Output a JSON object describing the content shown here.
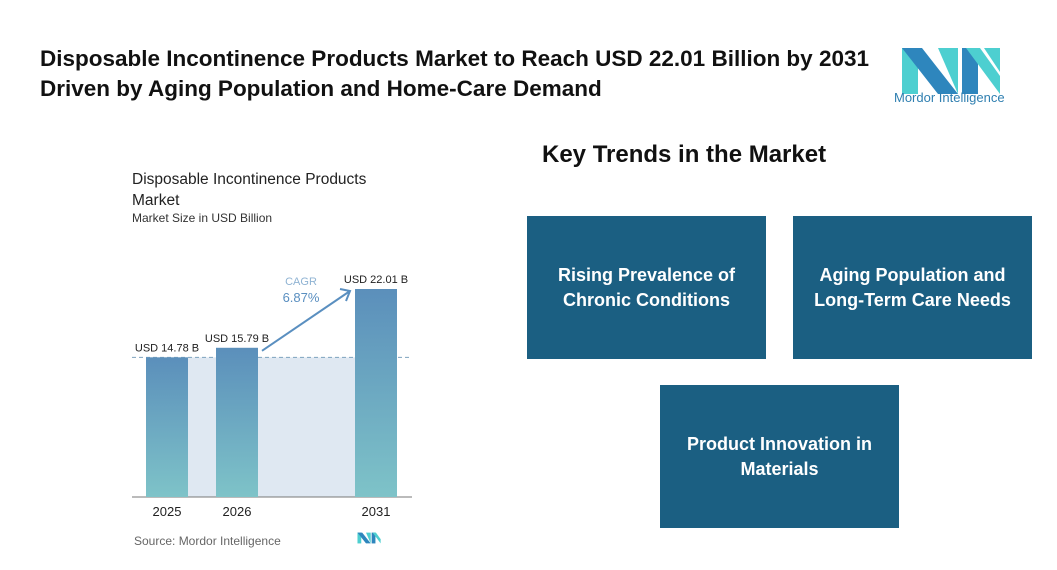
{
  "title": "Disposable Incontinence Products Market to Reach USD 22.01 Billion by 2031 Driven by Aging Population and Home-Care Demand",
  "logo": {
    "text": "Mordor Intelligence",
    "colors": {
      "dark": "#2e86bd",
      "teal": "#4dcfd0"
    }
  },
  "chart_data": {
    "type": "bar",
    "title": "Disposable Incontinence Products Market",
    "subtitle": "Market Size in USD Billion",
    "categories": [
      "2025",
      "2026",
      "2031"
    ],
    "values": [
      14.78,
      15.79,
      22.01
    ],
    "data_labels": [
      "USD 14.78 B",
      "USD 15.79 B",
      "USD 22.01 B"
    ],
    "annotation": {
      "label": "CAGR",
      "value": "6.87%"
    },
    "ylim": [
      0,
      22.01
    ],
    "grid": false,
    "colors": {
      "bar_top": "#5b8fbb",
      "bar_bottom": "#7ec3c8",
      "shade": "#dfe8f2",
      "annotation": "#5a8fc0"
    },
    "source": "Source: Mordor Intelligence"
  },
  "trends": {
    "heading": "Key Trends in the Market",
    "items": [
      "Rising Prevalence of Chronic Conditions",
      "Aging Population and Long-Term Care Needs",
      "Product Innovation in Materials"
    ],
    "color": "#1b5f82"
  }
}
